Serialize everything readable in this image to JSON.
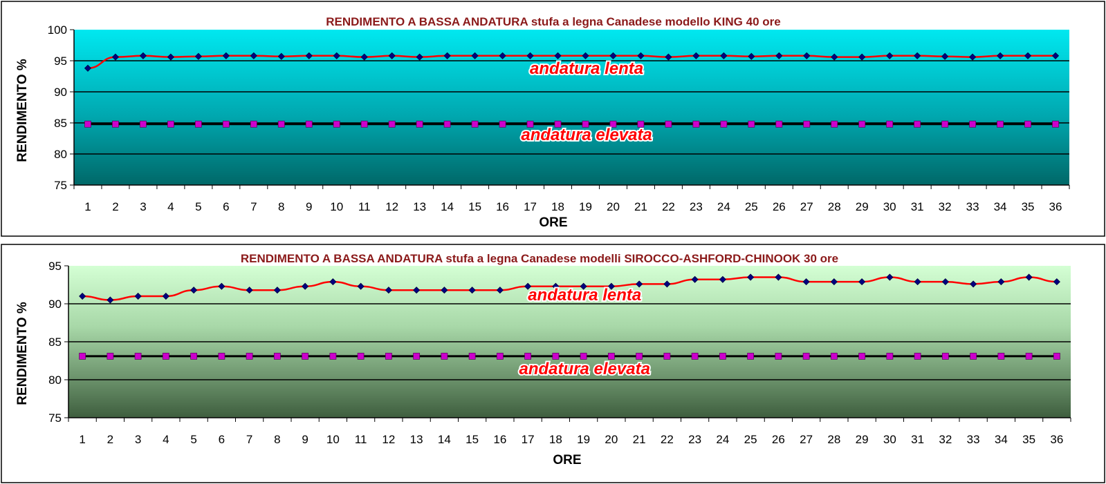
{
  "chart_data": [
    {
      "type": "line",
      "title": "RENDIMENTO A BASSA ANDATURA stufa a legna Canadese modello KING 40 ore",
      "xlabel": "ORE",
      "ylabel": "RENDIMENTO %",
      "ylim": [
        75,
        100
      ],
      "yticks": [
        75,
        80,
        85,
        90,
        95,
        100
      ],
      "categories": [
        "1",
        "2",
        "3",
        "4",
        "5",
        "6",
        "7",
        "8",
        "9",
        "10",
        "11",
        "12",
        "13",
        "14",
        "15",
        "16",
        "17",
        "18",
        "19",
        "20",
        "21",
        "22",
        "23",
        "24",
        "25",
        "26",
        "27",
        "28",
        "29",
        "30",
        "31",
        "32",
        "33",
        "34",
        "35",
        "36"
      ],
      "grid": true,
      "series": [
        {
          "name": "andatura lenta",
          "color": "#ff0000",
          "marker_color": "#000080",
          "values": [
            93.8,
            95.6,
            95.8,
            95.6,
            95.7,
            95.8,
            95.8,
            95.7,
            95.8,
            95.8,
            95.6,
            95.8,
            95.6,
            95.8,
            95.8,
            95.8,
            95.8,
            95.8,
            95.8,
            95.8,
            95.8,
            95.6,
            95.8,
            95.8,
            95.7,
            95.8,
            95.8,
            95.6,
            95.6,
            95.8,
            95.8,
            95.7,
            95.6,
            95.8,
            95.8,
            95.8
          ]
        },
        {
          "name": "andatura elevata",
          "color": "#000000",
          "marker_color": "#cc00cc",
          "values": [
            84.8,
            84.8,
            84.8,
            84.8,
            84.8,
            84.8,
            84.8,
            84.8,
            84.8,
            84.8,
            84.8,
            84.8,
            84.8,
            84.8,
            84.8,
            84.8,
            84.8,
            84.8,
            84.8,
            84.8,
            84.8,
            84.8,
            84.8,
            84.8,
            84.8,
            84.8,
            84.8,
            84.8,
            84.8,
            84.8,
            84.8,
            84.8,
            84.8,
            84.8,
            84.8,
            84.8
          ]
        }
      ]
    },
    {
      "type": "line",
      "title": "RENDIMENTO A BASSA ANDATURA stufa a legna Canadese modelli SIROCCO-ASHFORD-CHINOOK 30 ore",
      "xlabel": "ORE",
      "ylabel": "RENDIMENTO %",
      "ylim": [
        75,
        95
      ],
      "yticks": [
        75,
        80,
        85,
        90,
        95
      ],
      "categories": [
        "1",
        "2",
        "3",
        "4",
        "5",
        "6",
        "7",
        "8",
        "9",
        "10",
        "11",
        "12",
        "13",
        "14",
        "15",
        "16",
        "17",
        "18",
        "19",
        "20",
        "21",
        "22",
        "23",
        "24",
        "25",
        "26",
        "27",
        "28",
        "29",
        "30",
        "31",
        "32",
        "33",
        "34",
        "35",
        "36"
      ],
      "grid": true,
      "series": [
        {
          "name": "andatura lenta",
          "color": "#ff0000",
          "marker_color": "#000080",
          "values": [
            91.0,
            90.5,
            91.0,
            91.0,
            91.8,
            92.3,
            91.8,
            91.8,
            92.3,
            92.9,
            92.3,
            91.8,
            91.8,
            91.8,
            91.8,
            91.8,
            92.3,
            92.3,
            92.3,
            92.3,
            92.6,
            92.6,
            93.2,
            93.2,
            93.5,
            93.5,
            92.9,
            92.9,
            92.9,
            93.5,
            92.9,
            92.9,
            92.6,
            92.9,
            93.5,
            92.9
          ]
        },
        {
          "name": "andatura elevata",
          "color": "#000000",
          "marker_color": "#cc00cc",
          "values": [
            83.1,
            83.1,
            83.1,
            83.1,
            83.1,
            83.1,
            83.1,
            83.1,
            83.1,
            83.1,
            83.1,
            83.1,
            83.1,
            83.1,
            83.1,
            83.1,
            83.1,
            83.1,
            83.1,
            83.1,
            83.1,
            83.1,
            83.1,
            83.1,
            83.1,
            83.1,
            83.1,
            83.1,
            83.1,
            83.1,
            83.1,
            83.1,
            83.1,
            83.1,
            83.1,
            83.1
          ]
        }
      ]
    }
  ],
  "colors": {
    "chart1_bg_top": "#00e8f0",
    "chart1_bg_bottom": "#007070",
    "chart2_bg_top": "#ccffcc",
    "chart2_bg_bottom": "#406040",
    "title_color": "#8b1a1a"
  }
}
